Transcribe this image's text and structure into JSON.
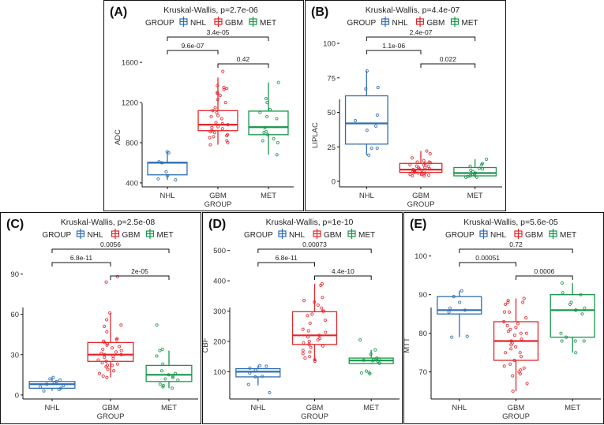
{
  "colors": {
    "NHL": "#2e6db4",
    "GBM": "#e3262b",
    "MET": "#16964a",
    "axis": "#111111",
    "text": "#222222"
  },
  "legend": {
    "title": "GROUP",
    "entries": [
      "NHL",
      "GBM",
      "MET"
    ]
  },
  "chart_data": [
    {
      "type": "box",
      "panel": "(A)",
      "title": "Kruskal-Wallis, p=2.7e-06",
      "xlabel": "GROUP",
      "ylabel": "ADC",
      "categories": [
        "NHL",
        "GBM",
        "MET"
      ],
      "ylim": [
        360,
        1900
      ],
      "yticks": [
        400,
        800,
        1200,
        1600
      ],
      "boxes": [
        {
          "group": "NHL",
          "min": 430,
          "q1": 480,
          "median": 600,
          "q3": 605,
          "max": 710
        },
        {
          "group": "GBM",
          "min": 780,
          "q1": 920,
          "median": 980,
          "q3": 1120,
          "max": 1450
        },
        {
          "group": "MET",
          "min": 680,
          "q1": 880,
          "median": 955,
          "q3": 1115,
          "max": 1400
        }
      ],
      "points": {
        "NHL": [
          710,
          700,
          610,
          600,
          510,
          470,
          440,
          430
        ],
        "GBM": [
          1510,
          1370,
          1350,
          1340,
          1330,
          1300,
          1290,
          1270,
          1230,
          1200,
          1150,
          1120,
          1100,
          1070,
          1060,
          1040,
          1000,
          990,
          980,
          960,
          950,
          940,
          920,
          910,
          900,
          880,
          870,
          860,
          850,
          820,
          800,
          780
        ],
        "MET": [
          1400,
          1240,
          1200,
          1130,
          1100,
          1060,
          1040,
          950,
          910,
          900,
          880,
          840,
          820,
          800,
          680
        ]
      },
      "comparisons": [
        {
          "from": "NHL",
          "to": "MET",
          "label": "3.4e-05",
          "level": 3
        },
        {
          "from": "NHL",
          "to": "GBM",
          "label": "9.6e-07",
          "level": 2
        },
        {
          "from": "GBM",
          "to": "MET",
          "label": "0.42",
          "level": 1
        }
      ]
    },
    {
      "type": "box",
      "panel": "(B)",
      "title": "Kruskal-Wallis, p=4.4e-07",
      "xlabel": "GROUP",
      "ylabel": "LIPLAC",
      "categories": [
        "NHL",
        "GBM",
        "MET"
      ],
      "ylim": [
        -4,
        108
      ],
      "yticks": [
        0,
        25,
        50,
        75,
        100
      ],
      "boxes": [
        {
          "group": "NHL",
          "min": 19,
          "q1": 27,
          "median": 42,
          "q3": 62,
          "max": 80
        },
        {
          "group": "GBM",
          "min": 4,
          "q1": 6.5,
          "median": 8.5,
          "q3": 13,
          "max": 22
        },
        {
          "group": "MET",
          "min": 3,
          "q1": 4,
          "median": 6,
          "q3": 10,
          "max": 16
        }
      ],
      "points": {
        "NHL": [
          80,
          68,
          67,
          48,
          44,
          40,
          37,
          24,
          24,
          19
        ],
        "GBM": [
          22,
          20,
          17,
          15,
          14,
          14,
          13.5,
          13,
          12,
          12,
          11,
          11,
          10,
          10,
          9,
          9,
          8.5,
          8,
          8,
          7.5,
          7,
          7,
          6.5,
          6,
          6,
          5.5,
          5,
          5,
          4.5,
          4,
          4
        ],
        "MET": [
          16,
          13,
          12,
          11,
          9.5,
          9,
          8,
          7,
          6,
          5,
          5,
          4,
          3.5,
          3,
          3
        ]
      },
      "comparisons": [
        {
          "from": "NHL",
          "to": "MET",
          "label": "2.4e-07",
          "level": 3
        },
        {
          "from": "NHL",
          "to": "GBM",
          "label": "1.1e-06",
          "level": 2
        },
        {
          "from": "GBM",
          "to": "MET",
          "label": "0.022",
          "level": 1
        }
      ]
    },
    {
      "type": "box",
      "panel": "(C)",
      "title": "Kruskal-Wallis, p=2.5e-08",
      "xlabel": "GROUP",
      "ylabel": "CBV",
      "categories": [
        "NHL",
        "GBM",
        "MET"
      ],
      "ylim": [
        -3,
        112
      ],
      "yticks": [
        0,
        30,
        60,
        90
      ],
      "boxes": [
        {
          "group": "NHL",
          "min": 3,
          "q1": 5,
          "median": 8,
          "q3": 10,
          "max": 13
        },
        {
          "group": "GBM",
          "min": 13,
          "q1": 25,
          "median": 30,
          "q3": 39,
          "max": 61
        },
        {
          "group": "MET",
          "min": 5,
          "q1": 10,
          "median": 15,
          "q3": 22,
          "max": 33
        }
      ],
      "points": {
        "NHL": [
          13,
          12,
          11,
          10,
          9,
          8,
          7,
          6,
          5,
          4,
          3
        ],
        "GBM": [
          88,
          84,
          61,
          56,
          52,
          51,
          47,
          42,
          41,
          40,
          39,
          38,
          37,
          36,
          35,
          34,
          33,
          32,
          31,
          30,
          30,
          29,
          28,
          27,
          26,
          25,
          24,
          23,
          22,
          22,
          21,
          19,
          18,
          16,
          14,
          13
        ],
        "MET": [
          52,
          34,
          33,
          29,
          23,
          18,
          16,
          15,
          14,
          13,
          12,
          11,
          8,
          7,
          6,
          5
        ]
      },
      "comparisons": [
        {
          "from": "NHL",
          "to": "MET",
          "label": "0.0056",
          "level": 3
        },
        {
          "from": "NHL",
          "to": "GBM",
          "label": "6.8e-11",
          "level": 2
        },
        {
          "from": "GBM",
          "to": "MET",
          "label": "2e-05",
          "level": 1
        }
      ]
    },
    {
      "type": "box",
      "panel": "(D)",
      "title": "Kruskal-Wallis, p=1e-10",
      "xlabel": "GROUP",
      "ylabel": "CBF",
      "categories": [
        "NHL",
        "GBM",
        "MET"
      ],
      "ylim": [
        10,
        520
      ],
      "yticks": [
        100,
        200,
        300,
        400,
        500
      ],
      "boxes": [
        {
          "group": "NHL",
          "min": 55,
          "q1": 83,
          "median": 100,
          "q3": 110,
          "max": 120
        },
        {
          "group": "GBM",
          "min": 135,
          "q1": 190,
          "median": 220,
          "q3": 298,
          "max": 390
        },
        {
          "group": "MET",
          "min": 125,
          "q1": 127,
          "median": 137,
          "q3": 145,
          "max": 172
        }
      ],
      "points": {
        "NHL": [
          120,
          118,
          112,
          105,
          95,
          85,
          83,
          58,
          31
        ],
        "GBM": [
          390,
          385,
          345,
          335,
          330,
          320,
          310,
          300,
          300,
          290,
          285,
          270,
          260,
          240,
          235,
          230,
          220,
          215,
          210,
          205,
          200,
          195,
          190,
          185,
          180,
          170,
          165,
          160,
          150,
          145,
          140,
          135
        ],
        "MET": [
          205,
          172,
          158,
          145,
          142,
          140,
          138,
          136,
          135,
          128,
          102,
          97,
          96,
          93
        ]
      },
      "comparisons": [
        {
          "from": "NHL",
          "to": "MET",
          "label": "0.00073",
          "level": 3
        },
        {
          "from": "NHL",
          "to": "GBM",
          "label": "6.8e-11",
          "level": 2
        },
        {
          "from": "GBM",
          "to": "MET",
          "label": "4.4e-10",
          "level": 1
        }
      ]
    },
    {
      "type": "box",
      "panel": "(E)",
      "title": "Kruskal-Wallis, p=5.6e-05",
      "xlabel": "GROUP",
      "ylabel": "MTT",
      "categories": [
        "NHL",
        "GBM",
        "MET"
      ],
      "ylim": [
        63,
        103
      ],
      "yticks": [
        70,
        80,
        90,
        100
      ],
      "boxes": [
        {
          "group": "NHL",
          "min": 79,
          "q1": 85,
          "median": 86,
          "q3": 89.5,
          "max": 91
        },
        {
          "group": "GBM",
          "min": 65,
          "q1": 73,
          "median": 78,
          "q3": 83,
          "max": 89
        },
        {
          "group": "MET",
          "min": 75,
          "q1": 79,
          "median": 86,
          "q3": 90,
          "max": 93
        }
      ],
      "points": {
        "NHL": [
          91,
          89.5,
          88,
          86.5,
          86,
          85.5,
          79.2,
          79
        ],
        "GBM": [
          89,
          88.5,
          88,
          88,
          87.5,
          85.5,
          85.5,
          84,
          83,
          82.5,
          82,
          81.5,
          81,
          80.5,
          80,
          80,
          79.5,
          78.5,
          78,
          77.5,
          77,
          76.5,
          76,
          75,
          75,
          74,
          73,
          72,
          71.5,
          71,
          70.5,
          70,
          69.5,
          69,
          67,
          65
        ],
        "MET": [
          93,
          90.5,
          90,
          88,
          87.5,
          86.5,
          86,
          86,
          85,
          80,
          79,
          78,
          78,
          78,
          75
        ]
      },
      "comparisons": [
        {
          "from": "NHL",
          "to": "MET",
          "label": "0.72",
          "level": 3
        },
        {
          "from": "NHL",
          "to": "GBM",
          "label": "0.00051",
          "level": 2
        },
        {
          "from": "GBM",
          "to": "MET",
          "label": "0.0006",
          "level": 1
        }
      ]
    }
  ]
}
